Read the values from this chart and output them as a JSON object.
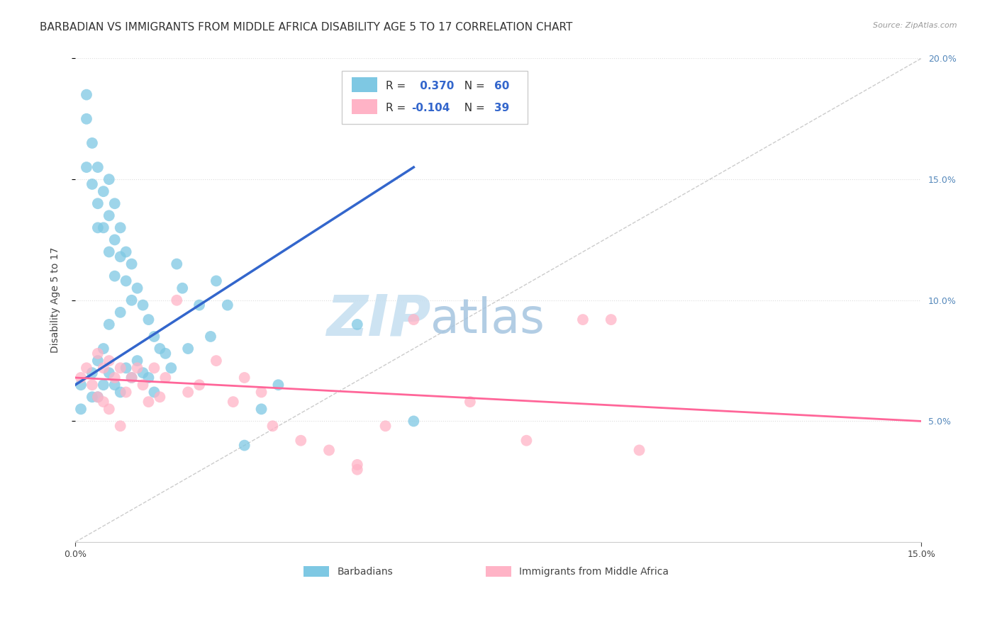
{
  "title": "BARBADIAN VS IMMIGRANTS FROM MIDDLE AFRICA DISABILITY AGE 5 TO 17 CORRELATION CHART",
  "source": "Source: ZipAtlas.com",
  "ylabel": "Disability Age 5 to 17",
  "xlim": [
    0.0,
    0.15
  ],
  "ylim": [
    0.0,
    0.2
  ],
  "blue_color": "#7ec8e3",
  "pink_color": "#ffb3c6",
  "blue_line_color": "#3366cc",
  "pink_line_color": "#ff6699",
  "diag_line_color": "#aaccee",
  "legend_R1": "0.370",
  "legend_N1": "60",
  "legend_R2": "-0.104",
  "legend_N2": "39",
  "watermark_zip": "ZIP",
  "watermark_atlas": "atlas",
  "watermark_color_zip": "#c8dff0",
  "watermark_color_atlas": "#a8c8e8",
  "background_color": "#ffffff",
  "grid_color": "#dddddd",
  "title_fontsize": 11,
  "axis_label_fontsize": 10,
  "tick_fontsize": 9,
  "barbadian_x": [
    0.001,
    0.001,
    0.002,
    0.002,
    0.002,
    0.003,
    0.003,
    0.003,
    0.003,
    0.004,
    0.004,
    0.004,
    0.004,
    0.004,
    0.005,
    0.005,
    0.005,
    0.005,
    0.006,
    0.006,
    0.006,
    0.006,
    0.006,
    0.007,
    0.007,
    0.007,
    0.007,
    0.008,
    0.008,
    0.008,
    0.008,
    0.009,
    0.009,
    0.009,
    0.01,
    0.01,
    0.01,
    0.011,
    0.011,
    0.012,
    0.012,
    0.013,
    0.013,
    0.014,
    0.014,
    0.015,
    0.016,
    0.017,
    0.018,
    0.019,
    0.02,
    0.022,
    0.024,
    0.025,
    0.027,
    0.03,
    0.033,
    0.036,
    0.05,
    0.06
  ],
  "barbadian_y": [
    0.065,
    0.055,
    0.185,
    0.175,
    0.155,
    0.165,
    0.148,
    0.07,
    0.06,
    0.155,
    0.14,
    0.13,
    0.075,
    0.06,
    0.145,
    0.13,
    0.08,
    0.065,
    0.15,
    0.135,
    0.12,
    0.09,
    0.07,
    0.14,
    0.125,
    0.11,
    0.065,
    0.13,
    0.118,
    0.095,
    0.062,
    0.12,
    0.108,
    0.072,
    0.115,
    0.1,
    0.068,
    0.105,
    0.075,
    0.098,
    0.07,
    0.092,
    0.068,
    0.085,
    0.062,
    0.08,
    0.078,
    0.072,
    0.115,
    0.105,
    0.08,
    0.098,
    0.085,
    0.108,
    0.098,
    0.04,
    0.055,
    0.065,
    0.09,
    0.05
  ],
  "immigrant_x": [
    0.001,
    0.002,
    0.003,
    0.004,
    0.004,
    0.005,
    0.005,
    0.006,
    0.006,
    0.007,
    0.008,
    0.008,
    0.009,
    0.01,
    0.011,
    0.012,
    0.013,
    0.014,
    0.015,
    0.016,
    0.018,
    0.02,
    0.022,
    0.025,
    0.028,
    0.03,
    0.033,
    0.035,
    0.04,
    0.045,
    0.05,
    0.055,
    0.06,
    0.07,
    0.08,
    0.09,
    0.095,
    0.1,
    0.05
  ],
  "immigrant_y": [
    0.068,
    0.072,
    0.065,
    0.078,
    0.06,
    0.072,
    0.058,
    0.075,
    0.055,
    0.068,
    0.072,
    0.048,
    0.062,
    0.068,
    0.072,
    0.065,
    0.058,
    0.072,
    0.06,
    0.068,
    0.1,
    0.062,
    0.065,
    0.075,
    0.058,
    0.068,
    0.062,
    0.048,
    0.042,
    0.038,
    0.032,
    0.048,
    0.092,
    0.058,
    0.042,
    0.092,
    0.092,
    0.038,
    0.03
  ]
}
